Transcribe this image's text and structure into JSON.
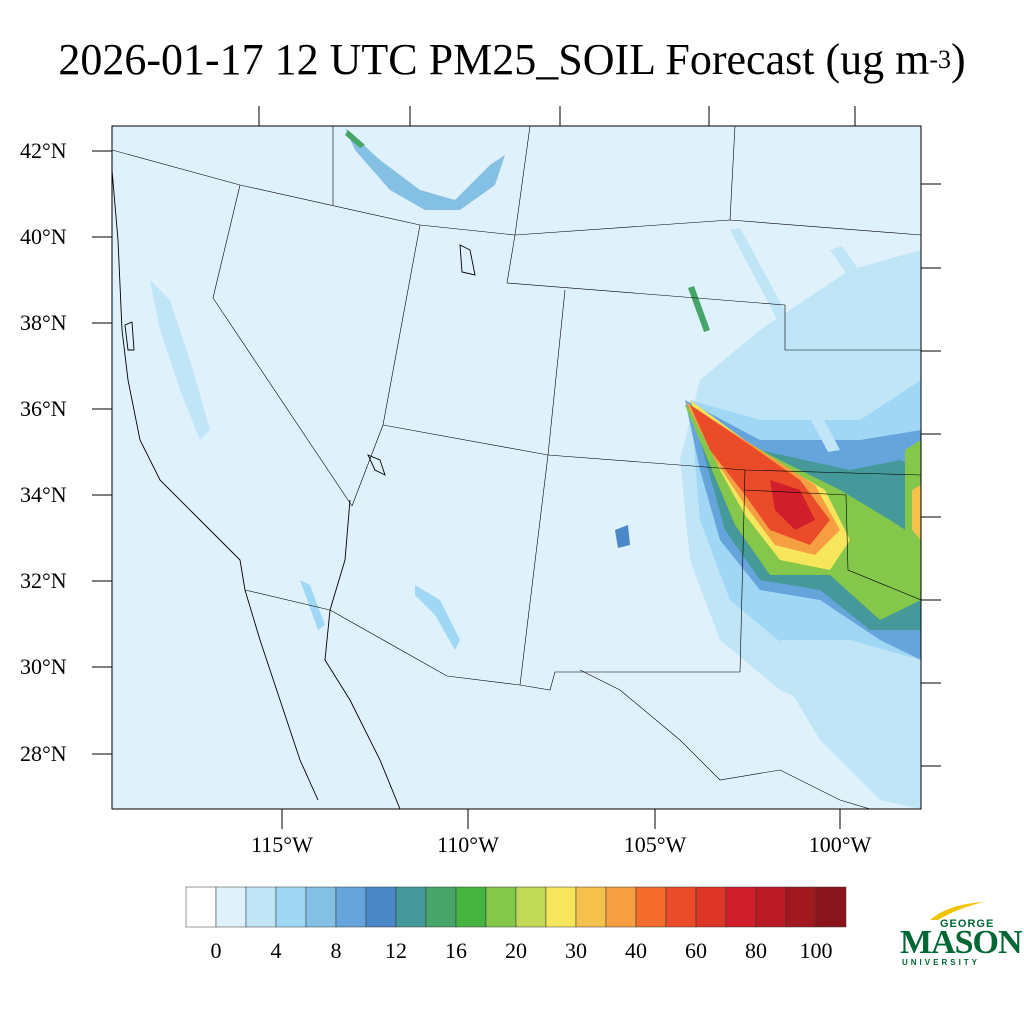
{
  "title": {
    "main": "2026-01-17 12 UTC PM25_SOIL Forecast (ug m",
    "exponent": "-3",
    "close": ")"
  },
  "axes": {
    "lat_labels": [
      "42°N",
      "40°N",
      "38°N",
      "36°N",
      "34°N",
      "32°N",
      "30°N",
      "28°N"
    ],
    "lon_labels": [
      "115°W",
      "110°W",
      "105°W",
      "100°W"
    ]
  },
  "colorbar": {
    "labels": [
      "0",
      "4",
      "8",
      "12",
      "16",
      "20",
      "30",
      "40",
      "60",
      "80",
      "100"
    ],
    "colors": [
      "#ffffff",
      "#dff1fb",
      "#bfe5f7",
      "#a0d7f5",
      "#84bfe4",
      "#66a5dc",
      "#4a88c8",
      "#45999a",
      "#48a56a",
      "#46b441",
      "#84c74b",
      "#c2d957",
      "#f7e65b",
      "#f5c14d",
      "#f69e42",
      "#f36c2b",
      "#ea4c29",
      "#dd3526",
      "#d01f2a",
      "#b91a24",
      "#a2181f",
      "#8a141b"
    ]
  },
  "logo": {
    "george": "GEORGE",
    "mason": "MASON",
    "university": "UNIVERSITY"
  },
  "colors": {
    "background_fill": "#dff1fb",
    "border": "#000000",
    "logo_green": "#006633",
    "logo_gold": "#f2c300"
  }
}
